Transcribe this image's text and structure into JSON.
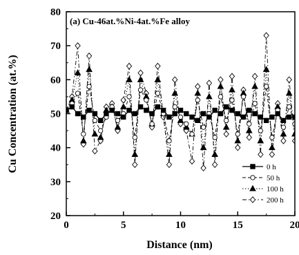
{
  "chart_data": {
    "type": "line",
    "title": "(a) Cu-46at.%Ni-4at.%Fe alloy",
    "xlabel": "Distance (nm)",
    "ylabel": "Cu Concentration (at.%)",
    "xlim": [
      0,
      20
    ],
    "ylim": [
      20,
      80
    ],
    "xticks": [
      "0",
      "5",
      "10",
      "15",
      "20"
    ],
    "yticks": [
      "20",
      "30",
      "40",
      "50",
      "60",
      "70",
      "80"
    ],
    "grid": false,
    "legend_position": "bottom-right",
    "colors": {
      "line": "#000000",
      "background": "#ffffff"
    },
    "series": [
      {
        "name": "0 h",
        "marker": "filled-square",
        "line_style": "solid",
        "x": [
          0,
          0.5,
          1,
          1.5,
          2,
          2.5,
          3,
          3.5,
          4,
          4.5,
          5,
          5.5,
          6,
          6.5,
          7,
          7.5,
          8,
          8.5,
          9,
          9.5,
          10,
          10.5,
          11,
          11.5,
          12,
          12.5,
          13,
          13.5,
          14,
          14.5,
          15,
          15.5,
          16,
          16.5,
          17,
          17.5,
          18,
          18.5,
          19,
          19.5,
          20
        ],
        "y": [
          51,
          52,
          50,
          49,
          51,
          50,
          48,
          50,
          51,
          50,
          49,
          51,
          50,
          52,
          51,
          50,
          52,
          51,
          49,
          50,
          51,
          50,
          49,
          48,
          50,
          49,
          51,
          50,
          52,
          51,
          50,
          49,
          51,
          50,
          49,
          48,
          49,
          50,
          48,
          49,
          49
        ]
      },
      {
        "name": "50 h",
        "marker": "open-circle",
        "line_style": "dashed",
        "x": [
          0,
          0.5,
          1,
          1.5,
          2,
          2.5,
          3,
          3.5,
          4,
          4.5,
          5,
          5.5,
          6,
          6.5,
          7,
          7.5,
          8,
          8.5,
          9,
          9.5,
          10,
          10.5,
          11,
          11.5,
          12,
          12.5,
          13,
          13.5,
          14,
          14.5,
          15,
          15.5,
          16,
          16.5,
          17,
          17.5,
          18,
          18.5,
          19,
          19.5,
          20
        ],
        "y": [
          51,
          53,
          56,
          44,
          58,
          48,
          45,
          49,
          52,
          48,
          50,
          55,
          43,
          57,
          54,
          47,
          56,
          50,
          42,
          52,
          49,
          47,
          44,
          54,
          46,
          50,
          43,
          55,
          48,
          54,
          44,
          55,
          47,
          53,
          45,
          58,
          43,
          51,
          46,
          52,
          47
        ]
      },
      {
        "name": "100 h",
        "marker": "filled-triangle",
        "line_style": "dotted",
        "x": [
          0,
          0.5,
          1,
          1.5,
          2,
          2.5,
          3,
          3.5,
          4,
          4.5,
          5,
          5.5,
          6,
          6.5,
          7,
          7.5,
          8,
          8.5,
          9,
          9.5,
          10,
          10.5,
          11,
          11.5,
          12,
          12.5,
          13,
          13.5,
          14,
          14.5,
          15,
          15.5,
          16,
          16.5,
          17,
          17.5,
          18,
          18.5,
          19,
          19.5,
          20
        ],
        "y": [
          51,
          54,
          62,
          42,
          63,
          44,
          43,
          51,
          52,
          46,
          52,
          60,
          38,
          60,
          55,
          47,
          60,
          50,
          38,
          56,
          48,
          46,
          44,
          56,
          40,
          55,
          38,
          58,
          46,
          57,
          42,
          56,
          45,
          58,
          42,
          63,
          40,
          52,
          44,
          56,
          44
        ]
      },
      {
        "name": "200 h",
        "marker": "open-diamond",
        "line_style": "dash-dot",
        "x": [
          0,
          0.5,
          1,
          1.5,
          2,
          2.5,
          3,
          3.5,
          4,
          4.5,
          5,
          5.5,
          6,
          6.5,
          7,
          7.5,
          8,
          8.5,
          9,
          9.5,
          10,
          10.5,
          11,
          11.5,
          12,
          12.5,
          13,
          13.5,
          14,
          14.5,
          15,
          15.5,
          16,
          16.5,
          17,
          17.5,
          18,
          18.5,
          19,
          19.5,
          20
        ],
        "y": [
          51,
          55,
          70,
          41,
          67,
          39,
          42,
          52,
          53,
          45,
          54,
          64,
          35,
          62,
          56,
          46,
          64,
          49,
          35,
          60,
          47,
          45,
          36,
          58,
          34,
          59,
          35,
          60,
          44,
          61,
          40,
          57,
          43,
          61,
          38,
          73,
          38,
          53,
          42,
          60,
          42
        ]
      }
    ]
  }
}
